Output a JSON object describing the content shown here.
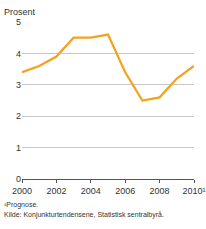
{
  "chart_data": {
    "type": "line",
    "y_label": "Prosent",
    "x": [
      2000,
      2001,
      2002,
      2003,
      2004,
      2005,
      2006,
      2007,
      2008,
      2009,
      2010
    ],
    "values": [
      3.4,
      3.6,
      3.9,
      4.5,
      4.5,
      4.6,
      3.4,
      2.5,
      2.6,
      3.2,
      3.6
    ],
    "color": "#f4a21b",
    "xlim": [
      2000,
      2010
    ],
    "xticks": [
      2000,
      2002,
      2004,
      2006,
      2008,
      {
        "value": 2010,
        "label": "2010¹"
      }
    ],
    "ylim": [
      0,
      5
    ],
    "yticks": [
      0,
      1,
      2,
      3,
      4,
      5
    ],
    "grid": true,
    "annotations": [
      "¹Prognose.",
      "Kilde: Konjunkturtendensene, Statistisk sentralbyrå."
    ]
  }
}
